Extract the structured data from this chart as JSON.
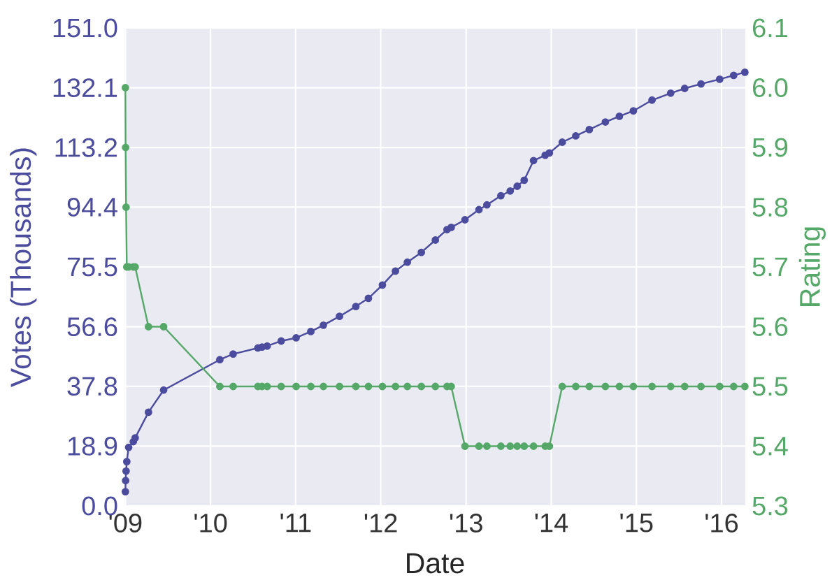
{
  "chart_data": {
    "type": "line",
    "xlabel": "Date",
    "ylabel": "Votes (Thousands)",
    "y2label": "Rating",
    "x": [
      "2009-01-01",
      "2009-01-02",
      "2009-01-04",
      "2009-01-07",
      "2009-01-15",
      "2009-02-04",
      "2009-02-12",
      "2009-04-10",
      "2009-06-14",
      "2010-02-10",
      "2010-04-08",
      "2010-07-23",
      "2010-08-10",
      "2010-09-01",
      "2010-10-31",
      "2011-01-03",
      "2011-03-07",
      "2011-04-30",
      "2011-07-08",
      "2011-09-16",
      "2011-11-09",
      "2012-01-08",
      "2012-03-04",
      "2012-04-24",
      "2012-06-23",
      "2012-08-22",
      "2012-10-11",
      "2012-10-29",
      "2012-12-27",
      "2013-02-25",
      "2013-03-31",
      "2013-05-30",
      "2013-07-09",
      "2013-08-08",
      "2013-09-07",
      "2013-10-17",
      "2013-12-06",
      "2013-12-24",
      "2014-02-17",
      "2014-04-16",
      "2014-06-13",
      "2014-08-21",
      "2014-10-20",
      "2014-12-19",
      "2015-03-09",
      "2015-05-28",
      "2015-07-27",
      "2015-10-05",
      "2015-12-24",
      "2016-02-22",
      "2016-04-10"
    ],
    "series": [
      {
        "color": "#4c4c9e",
        "values": [
          4.5,
          8.0,
          11.0,
          14.0,
          18.5,
          20.3,
          21.5,
          29.6,
          36.6,
          46.2,
          48.0,
          49.9,
          50.2,
          50.5,
          52.1,
          53.1,
          55.1,
          57.1,
          59.9,
          63.0,
          65.6,
          69.8,
          74.2,
          77.0,
          80.1,
          84.0,
          87.3,
          88.0,
          90.4,
          93.6,
          95.1,
          98.0,
          99.5,
          101.0,
          102.9,
          109.1,
          110.8,
          111.5,
          114.9,
          116.9,
          118.9,
          121.3,
          123.1,
          124.8,
          128.2,
          130.4,
          131.9,
          133.3,
          134.8,
          136.0,
          137.0
        ]
      },
      {
        "color": "#55a868",
        "axis": "y2",
        "values": [
          6.0,
          5.9,
          5.8,
          5.7,
          5.7,
          5.7,
          5.7,
          5.6,
          5.6,
          5.5,
          5.5,
          5.5,
          5.5,
          5.5,
          5.5,
          5.5,
          5.5,
          5.5,
          5.5,
          5.5,
          5.5,
          5.5,
          5.5,
          5.5,
          5.5,
          5.5,
          5.5,
          5.5,
          5.4,
          5.4,
          5.4,
          5.4,
          5.4,
          5.4,
          5.4,
          5.4,
          5.4,
          5.4,
          5.5,
          5.5,
          5.5,
          5.5,
          5.5,
          5.5,
          5.5,
          5.5,
          5.5,
          5.5,
          5.5,
          5.5,
          5.5
        ]
      }
    ],
    "xlim": [
      "2008-12-28",
      "2016-04-12"
    ],
    "xticks": [
      {
        "value": "2009-01-01",
        "label": "'09"
      },
      {
        "value": "2010-01-01",
        "label": "'10"
      },
      {
        "value": "2011-01-01",
        "label": "'11"
      },
      {
        "value": "2012-01-01",
        "label": "'12"
      },
      {
        "value": "2013-01-01",
        "label": "'13"
      },
      {
        "value": "2014-01-01",
        "label": "'14"
      },
      {
        "value": "2015-01-01",
        "label": "'15"
      },
      {
        "value": "2016-01-01",
        "label": "'16"
      }
    ],
    "ylim": [
      0,
      151
    ],
    "yticks": [
      {
        "value": 0,
        "label": "0.0"
      },
      18.9,
      37.8,
      56.6,
      75.5,
      94.4,
      113.2,
      132.1,
      {
        "value": 151,
        "label": "151.0"
      }
    ],
    "y2lim": [
      5.3,
      6.1
    ],
    "y2ticks": [
      5.3,
      5.4,
      5.5,
      5.6,
      5.7,
      5.8,
      5.9,
      {
        "value": 6,
        "label": "6.0"
      },
      6.1
    ],
    "grid": true,
    "marker": "circle",
    "line_style": "solid"
  }
}
